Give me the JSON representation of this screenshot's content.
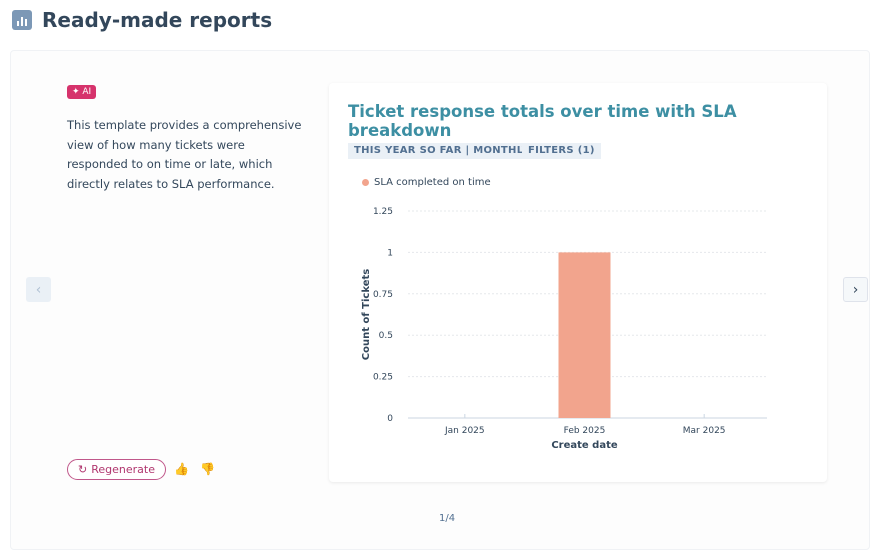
{
  "header": {
    "title": "Ready-made reports",
    "icon": "bar-chart-icon"
  },
  "left": {
    "ai_badge": "✦ AI",
    "description": "This template provides a comprehensive view of how many tickets were responded to on time or late, which directly relates to SLA performance.",
    "regenerate_label": "Regenerate",
    "thumbs_up": "👍",
    "thumbs_down": "👎"
  },
  "nav": {
    "prev": "‹",
    "next": "›"
  },
  "card": {
    "title": "Ticket response totals over time with SLA breakdown",
    "date_tag": "THIS YEAR SO FAR | MONTHLY",
    "filter_tag": "FILTERS (1)"
  },
  "pagination": "1/4",
  "chart_data": {
    "type": "bar",
    "title": "Ticket response totals over time with SLA breakdown",
    "xlabel": "Create date",
    "ylabel": "Count of Tickets",
    "categories": [
      "Jan 2025",
      "Feb 2025",
      "Mar 2025"
    ],
    "series": [
      {
        "name": "SLA completed on time",
        "values": [
          0,
          1,
          0
        ],
        "color": "#f2a48d"
      }
    ],
    "ylim": [
      0,
      1.25
    ],
    "yticks": [
      "0",
      "0.25",
      "0.5",
      "0.75",
      "1",
      "1.25"
    ],
    "grid": true,
    "legend": "top-left"
  }
}
